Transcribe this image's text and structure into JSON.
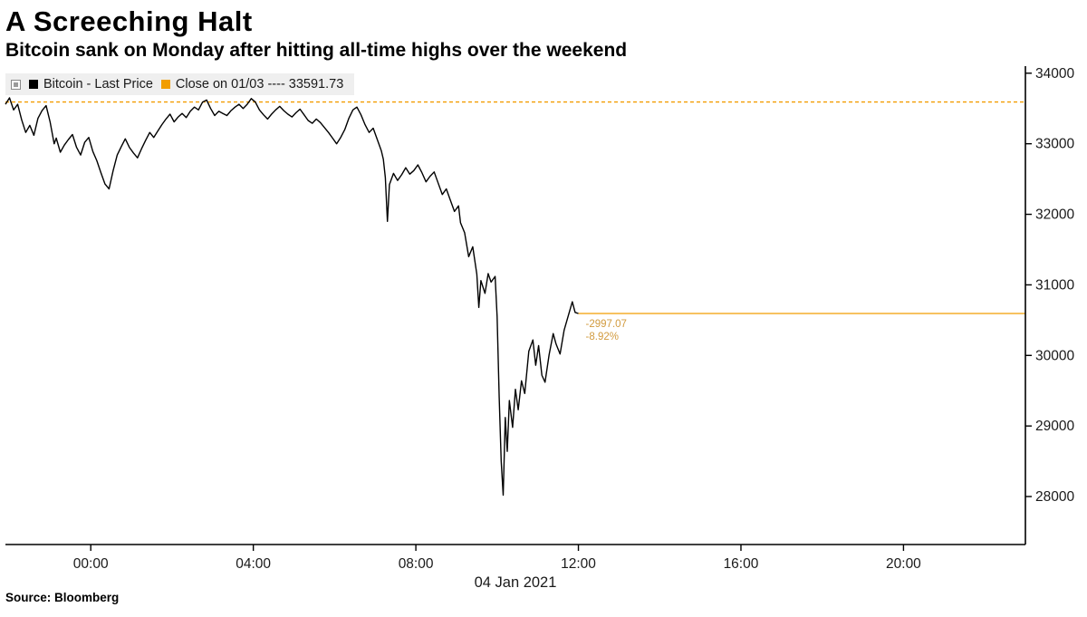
{
  "header": {
    "title": "A Screeching Halt",
    "subtitle": "Bitcoin sank on Monday after hitting all-time highs over the weekend"
  },
  "legend": {
    "series1_label": "Bitcoin - Last Price",
    "series2_label": "Close on 01/03 ---- 33591.73"
  },
  "footer": {
    "source": "Source:  Bloomberg"
  },
  "colors": {
    "series": "#000000",
    "accent": "#f29d00",
    "annotation_text": "#d29b3f",
    "axis": "#000000",
    "tick_text": "#1a1a1a",
    "legend_bg": "#efefef"
  },
  "chart_data": {
    "type": "line",
    "title": "A Screeching Halt",
    "series_name": "Bitcoin - Last Price",
    "x_unit": "hours from 04 Jan 2021 00:00",
    "xlim": [
      -2.1,
      23.0
    ],
    "ylim": [
      27320,
      34100
    ],
    "grid": false,
    "legend_position": "top-left",
    "y_ticks": [
      28000,
      29000,
      30000,
      31000,
      32000,
      33000,
      34000
    ],
    "x_ticks": [
      {
        "t": 0,
        "label": "00:00"
      },
      {
        "t": 4,
        "label": "04:00"
      },
      {
        "t": 8,
        "label": "08:00"
      },
      {
        "t": 12,
        "label": "12:00"
      },
      {
        "t": 16,
        "label": "16:00"
      },
      {
        "t": 20,
        "label": "20:00"
      }
    ],
    "x_axis_date": "04 Jan 2021",
    "close_reference": {
      "label": "Close on 01/03",
      "value": 33591.73
    },
    "last_price": 30594.66,
    "annotation": {
      "change": "-2997.07",
      "pct": "-8.92%"
    },
    "points": [
      [
        -2.1,
        33560
      ],
      [
        -2.0,
        33650
      ],
      [
        -1.9,
        33480
      ],
      [
        -1.8,
        33560
      ],
      [
        -1.7,
        33340
      ],
      [
        -1.6,
        33160
      ],
      [
        -1.5,
        33260
      ],
      [
        -1.4,
        33120
      ],
      [
        -1.3,
        33360
      ],
      [
        -1.2,
        33470
      ],
      [
        -1.1,
        33540
      ],
      [
        -1.0,
        33310
      ],
      [
        -0.9,
        33000
      ],
      [
        -0.85,
        33080
      ],
      [
        -0.75,
        32880
      ],
      [
        -0.65,
        32980
      ],
      [
        -0.55,
        33060
      ],
      [
        -0.45,
        33130
      ],
      [
        -0.35,
        32950
      ],
      [
        -0.25,
        32840
      ],
      [
        -0.15,
        33020
      ],
      [
        -0.05,
        33090
      ],
      [
        0.05,
        32890
      ],
      [
        0.15,
        32760
      ],
      [
        0.25,
        32590
      ],
      [
        0.35,
        32430
      ],
      [
        0.45,
        32360
      ],
      [
        0.55,
        32620
      ],
      [
        0.65,
        32840
      ],
      [
        0.75,
        32960
      ],
      [
        0.85,
        33070
      ],
      [
        0.95,
        32950
      ],
      [
        1.05,
        32870
      ],
      [
        1.15,
        32800
      ],
      [
        1.25,
        32930
      ],
      [
        1.35,
        33050
      ],
      [
        1.45,
        33160
      ],
      [
        1.55,
        33090
      ],
      [
        1.65,
        33180
      ],
      [
        1.75,
        33270
      ],
      [
        1.85,
        33350
      ],
      [
        1.95,
        33420
      ],
      [
        2.05,
        33310
      ],
      [
        2.15,
        33380
      ],
      [
        2.25,
        33430
      ],
      [
        2.35,
        33370
      ],
      [
        2.45,
        33460
      ],
      [
        2.55,
        33520
      ],
      [
        2.65,
        33480
      ],
      [
        2.75,
        33590
      ],
      [
        2.85,
        33620
      ],
      [
        2.95,
        33500
      ],
      [
        3.05,
        33400
      ],
      [
        3.15,
        33460
      ],
      [
        3.25,
        33430
      ],
      [
        3.35,
        33400
      ],
      [
        3.45,
        33470
      ],
      [
        3.55,
        33520
      ],
      [
        3.65,
        33560
      ],
      [
        3.75,
        33500
      ],
      [
        3.85,
        33560
      ],
      [
        3.95,
        33640
      ],
      [
        4.05,
        33590
      ],
      [
        4.15,
        33480
      ],
      [
        4.25,
        33410
      ],
      [
        4.35,
        33350
      ],
      [
        4.45,
        33420
      ],
      [
        4.55,
        33480
      ],
      [
        4.65,
        33530
      ],
      [
        4.75,
        33470
      ],
      [
        4.85,
        33420
      ],
      [
        4.95,
        33380
      ],
      [
        5.05,
        33440
      ],
      [
        5.15,
        33490
      ],
      [
        5.25,
        33410
      ],
      [
        5.35,
        33330
      ],
      [
        5.45,
        33290
      ],
      [
        5.55,
        33350
      ],
      [
        5.65,
        33300
      ],
      [
        5.75,
        33230
      ],
      [
        5.85,
        33160
      ],
      [
        5.95,
        33080
      ],
      [
        6.05,
        33000
      ],
      [
        6.15,
        33090
      ],
      [
        6.25,
        33200
      ],
      [
        6.35,
        33360
      ],
      [
        6.45,
        33480
      ],
      [
        6.55,
        33520
      ],
      [
        6.65,
        33410
      ],
      [
        6.75,
        33270
      ],
      [
        6.85,
        33160
      ],
      [
        6.95,
        33220
      ],
      [
        7.05,
        33060
      ],
      [
        7.15,
        32900
      ],
      [
        7.2,
        32780
      ],
      [
        7.25,
        32520
      ],
      [
        7.3,
        31900
      ],
      [
        7.35,
        32420
      ],
      [
        7.45,
        32580
      ],
      [
        7.55,
        32480
      ],
      [
        7.65,
        32560
      ],
      [
        7.75,
        32660
      ],
      [
        7.85,
        32570
      ],
      [
        7.95,
        32620
      ],
      [
        8.05,
        32700
      ],
      [
        8.15,
        32590
      ],
      [
        8.25,
        32460
      ],
      [
        8.35,
        32540
      ],
      [
        8.45,
        32600
      ],
      [
        8.55,
        32440
      ],
      [
        8.65,
        32280
      ],
      [
        8.75,
        32360
      ],
      [
        8.85,
        32200
      ],
      [
        8.95,
        32040
      ],
      [
        9.05,
        32120
      ],
      [
        9.1,
        31880
      ],
      [
        9.2,
        31740
      ],
      [
        9.3,
        31400
      ],
      [
        9.4,
        31540
      ],
      [
        9.5,
        31150
      ],
      [
        9.55,
        30680
      ],
      [
        9.6,
        31060
      ],
      [
        9.7,
        30880
      ],
      [
        9.78,
        31160
      ],
      [
        9.85,
        31040
      ],
      [
        9.95,
        31120
      ],
      [
        10.0,
        30550
      ],
      [
        10.05,
        29400
      ],
      [
        10.1,
        28500
      ],
      [
        10.15,
        28020
      ],
      [
        10.2,
        29120
      ],
      [
        10.25,
        28640
      ],
      [
        10.3,
        29360
      ],
      [
        10.38,
        28980
      ],
      [
        10.45,
        29520
      ],
      [
        10.52,
        29230
      ],
      [
        10.6,
        29640
      ],
      [
        10.68,
        29460
      ],
      [
        10.78,
        30060
      ],
      [
        10.88,
        30220
      ],
      [
        10.95,
        29860
      ],
      [
        11.02,
        30140
      ],
      [
        11.1,
        29720
      ],
      [
        11.18,
        29620
      ],
      [
        11.28,
        30010
      ],
      [
        11.38,
        30310
      ],
      [
        11.45,
        30160
      ],
      [
        11.55,
        30020
      ],
      [
        11.65,
        30360
      ],
      [
        11.75,
        30560
      ],
      [
        11.85,
        30760
      ],
      [
        11.92,
        30610
      ],
      [
        12.0,
        30594.66
      ]
    ]
  }
}
